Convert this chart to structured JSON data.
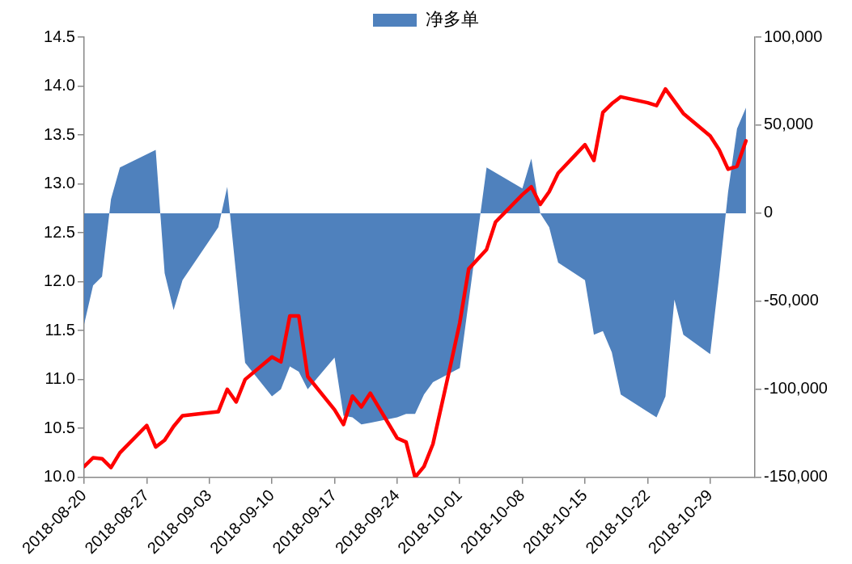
{
  "chart_data": {
    "type": "line",
    "legend": "top",
    "grid": false,
    "marker": "none",
    "xlim": [
      "2018-08-20",
      "2018-11-03"
    ],
    "xticks": [
      "2018-08-20",
      "2018-08-27",
      "2018-09-03",
      "2018-09-10",
      "2018-09-17",
      "2018-09-24",
      "2018-10-01",
      "2018-10-08",
      "2018-10-15",
      "2018-10-22",
      "2018-10-29"
    ],
    "ylim": [
      10,
      14.5
    ],
    "yticks": [
      {
        "value": 10,
        "label": "10.0"
      },
      {
        "value": 10.5,
        "label": "10.5"
      },
      {
        "value": 11,
        "label": "11.0"
      },
      {
        "value": 11.5,
        "label": "11.5"
      },
      {
        "value": 12,
        "label": "12.0"
      },
      {
        "value": 12.5,
        "label": "12.5"
      },
      {
        "value": 13,
        "label": "13.0"
      },
      {
        "value": 13.5,
        "label": "13.5"
      },
      {
        "value": 14,
        "label": "14.0"
      },
      {
        "value": 14.5,
        "label": "14.5"
      }
    ],
    "y2lim": [
      -150000,
      100000
    ],
    "y2ticks": [
      {
        "value": -150000,
        "label": "-150,000"
      },
      {
        "value": -100000,
        "label": "-100,000"
      },
      {
        "value": -50000,
        "label": "-50,000"
      },
      {
        "value": 0,
        "label": "0"
      },
      {
        "value": 50000,
        "label": "50,000"
      },
      {
        "value": 100000,
        "label": "100,000"
      }
    ],
    "series": [
      {
        "name": "净多单",
        "type": "area",
        "axis": "y2",
        "color": "#4f81bd",
        "x": [
          "2018-08-20",
          "2018-08-21",
          "2018-08-22",
          "2018-08-23",
          "2018-08-24",
          "2018-08-28",
          "2018-08-29",
          "2018-08-30",
          "2018-08-31",
          "2018-09-04",
          "2018-09-05",
          "2018-09-07",
          "2018-09-10",
          "2018-09-11",
          "2018-09-12",
          "2018-09-13",
          "2018-09-14",
          "2018-09-17",
          "2018-09-18",
          "2018-09-19",
          "2018-09-20",
          "2018-09-21",
          "2018-09-24",
          "2018-09-25",
          "2018-09-26",
          "2018-09-27",
          "2018-09-28",
          "2018-10-01",
          "2018-10-04",
          "2018-10-08",
          "2018-10-09",
          "2018-10-10",
          "2018-10-11",
          "2018-10-12",
          "2018-10-15",
          "2018-10-16",
          "2018-10-17",
          "2018-10-18",
          "2018-10-19",
          "2018-10-23",
          "2018-10-24",
          "2018-10-25",
          "2018-10-26",
          "2018-10-29",
          "2018-10-30",
          "2018-10-31",
          "2018-11-01",
          "2018-11-02"
        ],
        "values": [
          -63000,
          -41000,
          -36000,
          8000,
          26000,
          36000,
          -34000,
          -55000,
          -38000,
          -8000,
          15000,
          -85000,
          -104000,
          -100000,
          -87000,
          -90000,
          -100000,
          -82000,
          -115000,
          -116000,
          -120000,
          -119000,
          -116000,
          -114000,
          -114000,
          -103000,
          -96000,
          -88000,
          26000,
          14000,
          31000,
          0,
          -8000,
          -28000,
          -38000,
          -69000,
          -67000,
          -79000,
          -103000,
          -116000,
          -104000,
          -49000,
          -69000,
          -80000,
          -36000,
          12000,
          48000,
          60000
        ]
      },
      {
        "type": "line",
        "color": "#ff0000",
        "x": [
          "2018-08-20",
          "2018-08-21",
          "2018-08-22",
          "2018-08-23",
          "2018-08-24",
          "2018-08-27",
          "2018-08-28",
          "2018-08-29",
          "2018-08-30",
          "2018-08-31",
          "2018-09-04",
          "2018-09-05",
          "2018-09-06",
          "2018-09-07",
          "2018-09-10",
          "2018-09-11",
          "2018-09-12",
          "2018-09-13",
          "2018-09-14",
          "2018-09-17",
          "2018-09-18",
          "2018-09-19",
          "2018-09-20",
          "2018-09-21",
          "2018-09-24",
          "2018-09-25",
          "2018-09-26",
          "2018-09-27",
          "2018-09-28",
          "2018-09-29",
          "2018-09-30",
          "2018-10-01",
          "2018-10-02",
          "2018-10-03",
          "2018-10-04",
          "2018-10-05",
          "2018-10-08",
          "2018-10-09",
          "2018-10-10",
          "2018-10-11",
          "2018-10-12",
          "2018-10-15",
          "2018-10-16",
          "2018-10-17",
          "2018-10-18",
          "2018-10-19",
          "2018-10-22",
          "2018-10-23",
          "2018-10-24",
          "2018-10-26",
          "2018-10-29",
          "2018-10-30",
          "2018-10-31",
          "2018-11-01",
          "2018-11-02"
        ],
        "values": [
          10.11,
          10.2,
          10.19,
          10.1,
          10.25,
          10.53,
          10.31,
          10.38,
          10.52,
          10.63,
          10.67,
          10.9,
          10.77,
          11.0,
          11.23,
          11.18,
          11.65,
          11.65,
          11.03,
          10.69,
          10.54,
          10.83,
          10.72,
          10.86,
          10.4,
          10.36,
          10.0,
          10.11,
          10.34,
          10.75,
          11.16,
          11.58,
          12.13,
          12.23,
          12.33,
          12.61,
          12.89,
          12.97,
          12.79,
          12.92,
          13.11,
          13.4,
          13.24,
          13.73,
          13.82,
          13.89,
          13.83,
          13.8,
          13.97,
          13.72,
          13.49,
          13.35,
          13.15,
          13.18,
          13.44
        ]
      }
    ]
  }
}
